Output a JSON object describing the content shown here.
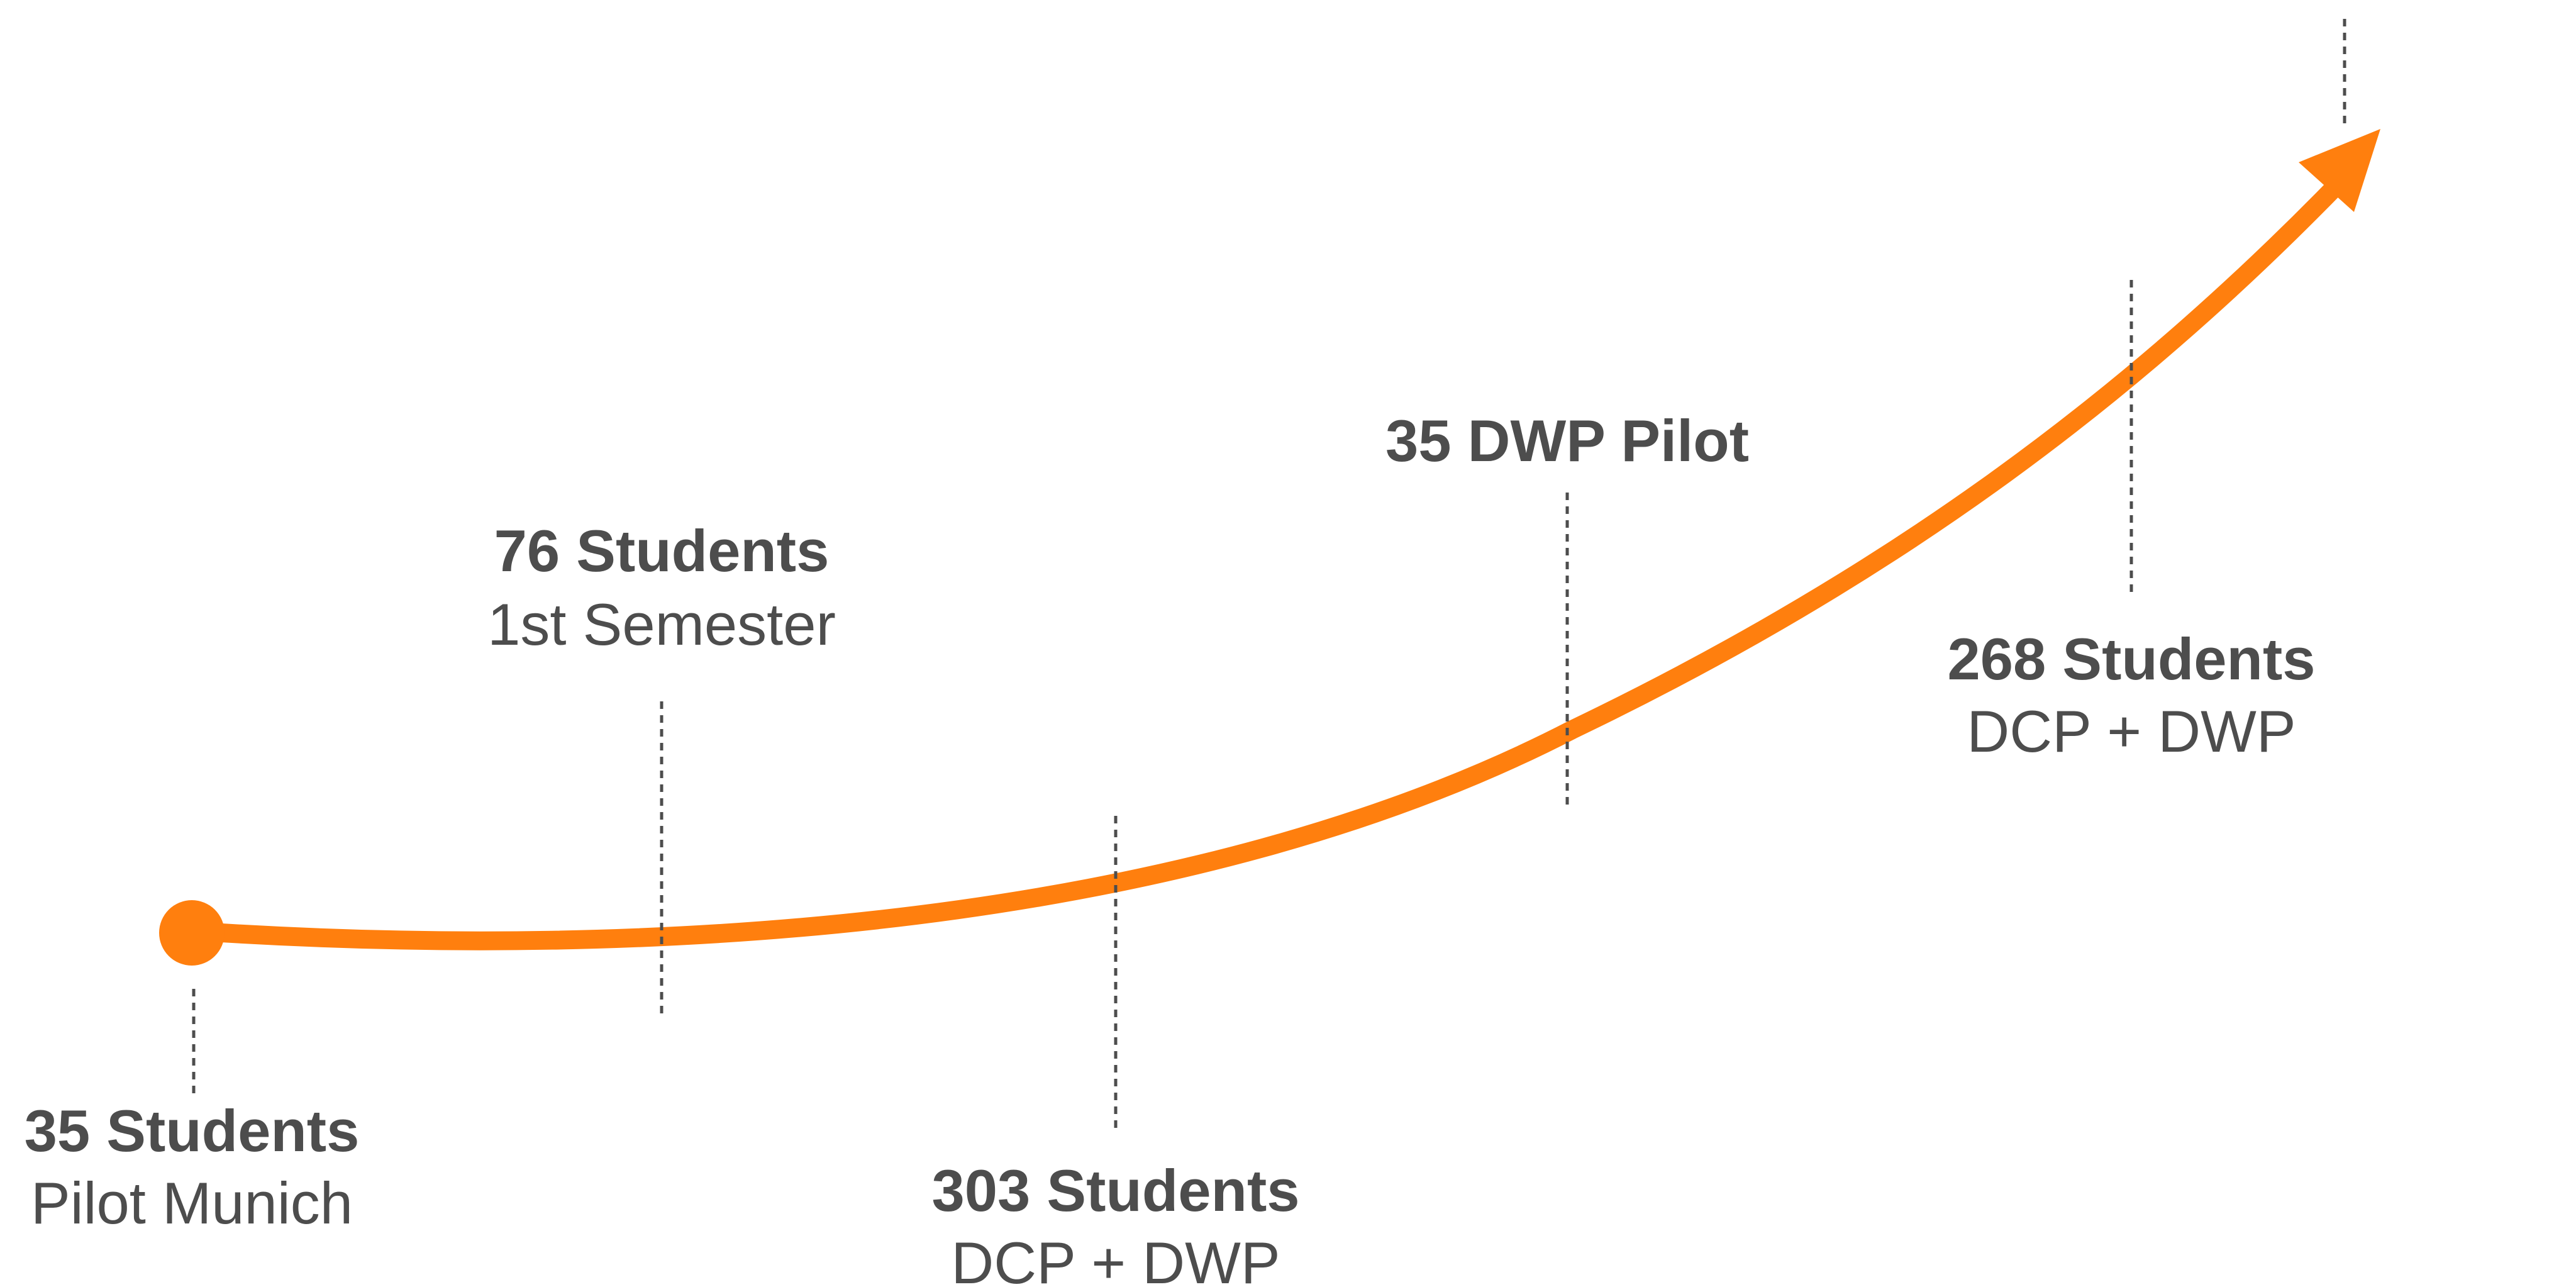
{
  "colors": {
    "accent": "#ff7f0e",
    "text": "#4d4d4d",
    "background": "#ffffff"
  },
  "milestones": [
    {
      "title": "35 Students",
      "subtitle": "Pilot Munich"
    },
    {
      "title": "76 Students",
      "subtitle": "1st Semester"
    },
    {
      "title": "303 Students",
      "subtitle": "DCP + DWP"
    },
    {
      "title": "35 DWP Pilot",
      "subtitle": ""
    },
    {
      "title": "268 Students",
      "subtitle": "DCP + DWP"
    }
  ]
}
